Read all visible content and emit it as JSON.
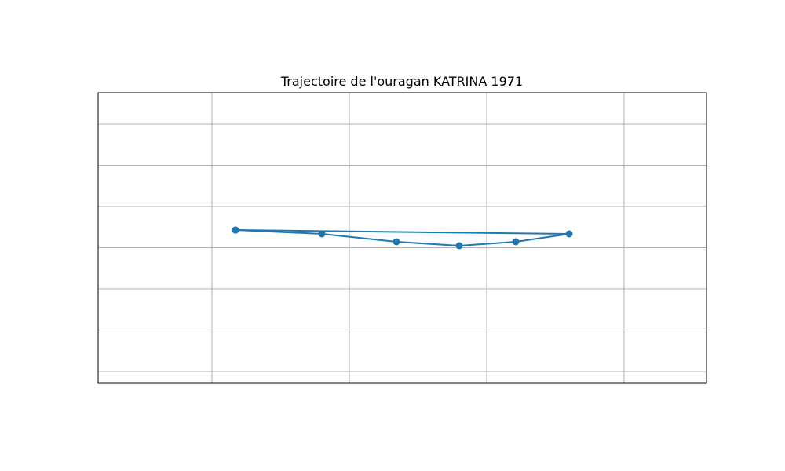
{
  "chart_data": {
    "type": "line",
    "title": "Trajectoire de l'ouragan KATRINA 1971",
    "xlabel": "",
    "ylabel": "",
    "xlim": [
      0,
      100
    ],
    "ylim": [
      0,
      100
    ],
    "grid": true,
    "x_gridlines": [
      18.71,
      41.29,
      63.87,
      86.45
    ],
    "y_gridlines": [
      4.05,
      18.24,
      32.43,
      46.62,
      60.81,
      75.0,
      89.19
    ],
    "series": [
      {
        "name": "",
        "color": "#1f77b4",
        "marker": "circle",
        "x": [
          22.58,
          36.77,
          49.03,
          59.35,
          68.65,
          77.42,
          22.58
        ],
        "y": [
          52.7,
          51.35,
          48.65,
          47.3,
          48.65,
          51.35,
          52.7
        ]
      }
    ]
  }
}
